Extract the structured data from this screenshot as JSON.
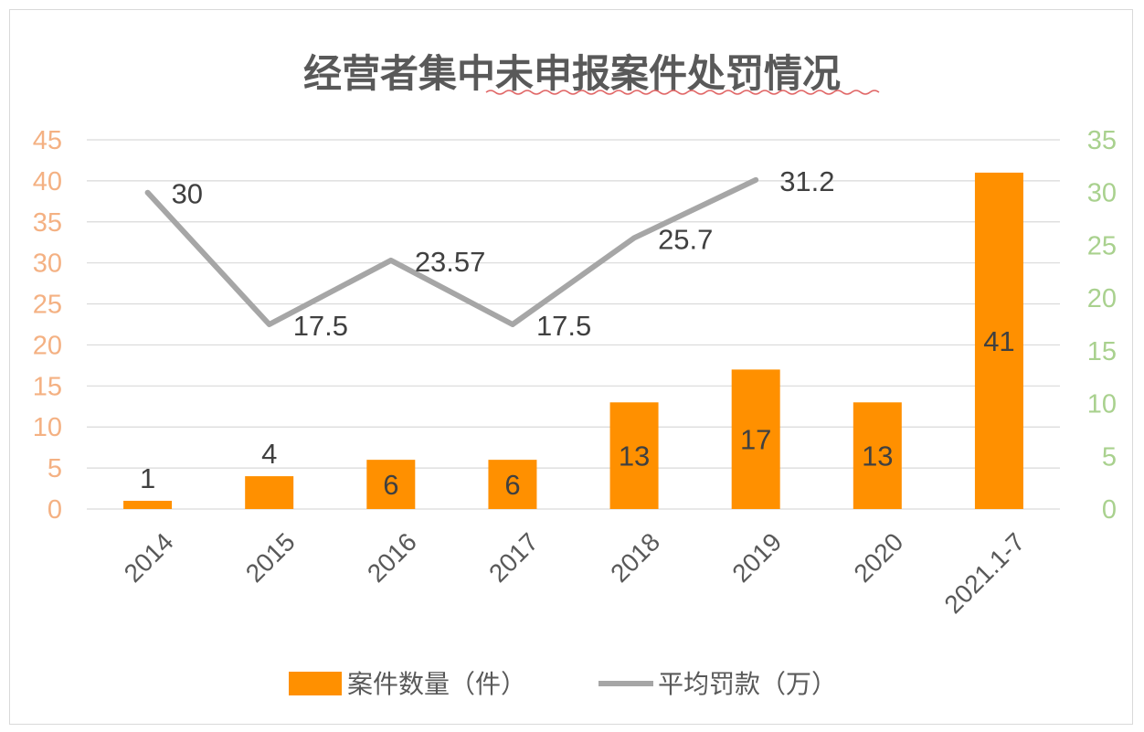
{
  "chart_data": {
    "type": "bar",
    "title": "经营者集中未申报案件处罚情况",
    "categories": [
      "2014",
      "2015",
      "2016",
      "2017",
      "2018",
      "2019",
      "2020",
      "2021.1-7"
    ],
    "series": [
      {
        "name": "案件数量（件）",
        "type": "bar",
        "axis": "left",
        "values": [
          1,
          4,
          6,
          6,
          13,
          17,
          13,
          41
        ],
        "labels": [
          "1",
          "4",
          "6",
          "6",
          "13",
          "17",
          "13",
          "41"
        ]
      },
      {
        "name": "平均罚款（万）",
        "type": "line",
        "axis": "right",
        "values": [
          30,
          17.5,
          23.57,
          17.5,
          25.7,
          31.2,
          null,
          null
        ],
        "labels": [
          "30",
          "17.5",
          "23.57",
          "17.5",
          "25.7",
          "31.2",
          "",
          ""
        ]
      }
    ],
    "left_axis": {
      "ylim": [
        0,
        45
      ],
      "ticks": [
        "0",
        "5",
        "10",
        "15",
        "20",
        "25",
        "30",
        "35",
        "40",
        "45"
      ]
    },
    "right_axis": {
      "ylim": [
        0,
        35
      ],
      "ticks": [
        "0",
        "5",
        "10",
        "15",
        "20",
        "25",
        "30",
        "35"
      ]
    },
    "grid": true,
    "legend_position": "bottom",
    "colors": {
      "bar": "#ff9000",
      "line": "#a6a6a6",
      "left_axis_text": "#f4b183",
      "right_axis_text": "#a9d18e",
      "gridline": "#d9d9d9",
      "title_underline": "#e06666"
    }
  }
}
